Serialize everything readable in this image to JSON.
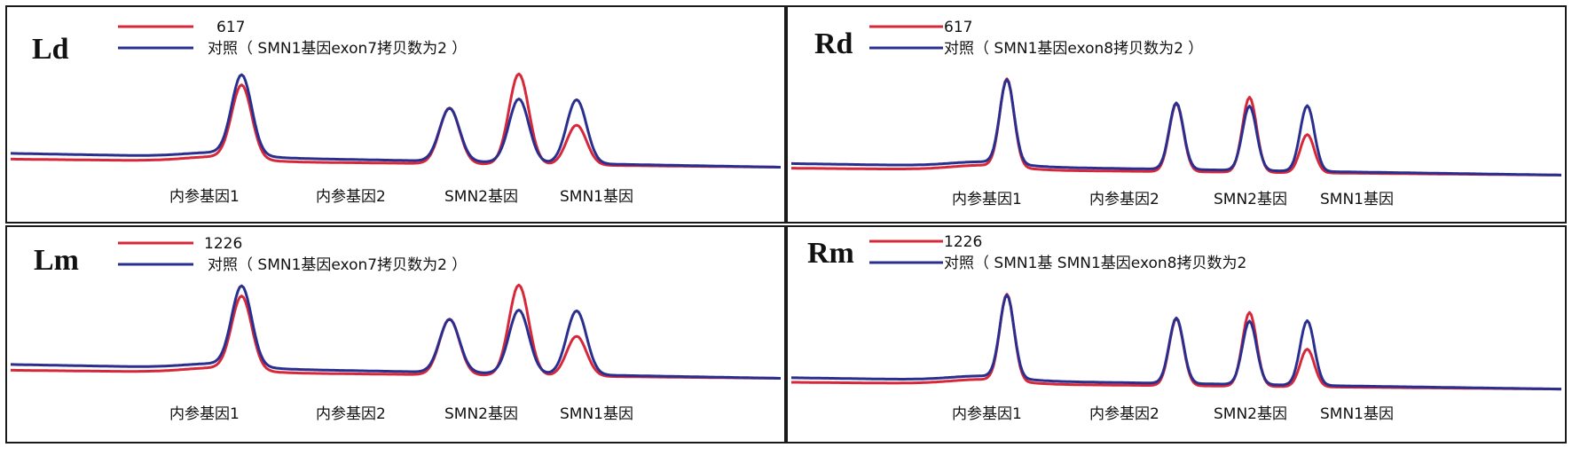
{
  "panels": [
    {
      "label": "Ld",
      "legend": [
        {
          "name": "617",
          "color": "#d6283a"
        },
        {
          "name": "对照（ SMN1基因exon7拷贝数为2 ）",
          "color": "#2a2f8f"
        }
      ],
      "peak_labels": [
        "内参基因1",
        "内参基因2",
        "SMN2基因",
        "SMN1基因"
      ]
    },
    {
      "label": "Rd",
      "legend": [
        {
          "name": "617",
          "color": "#d6283a"
        },
        {
          "name": "对照（ SMN1基因exon8拷贝数为2 ）",
          "color": "#2a2f8f"
        }
      ],
      "peak_labels": [
        "内参基因1",
        "内参基因2",
        "SMN2基因",
        "SMN1基因"
      ]
    },
    {
      "label": "Lm",
      "legend": [
        {
          "name": "1226",
          "color": "#d6283a"
        },
        {
          "name": "对照（ SMN1基因exon7拷贝数为2 ）",
          "color": "#2a2f8f"
        }
      ],
      "peak_labels": [
        "内参基因1",
        "内参基因2",
        "SMN2基因",
        "SMN1基因"
      ]
    },
    {
      "label": "Rm",
      "legend": [
        {
          "name": "1226",
          "color": "#d6283a"
        },
        {
          "name": "对照（ SMN1基 SMN1基因exon8拷贝数为2",
          "color": "#2a2f8f"
        }
      ],
      "peak_labels": [
        "内参基因1",
        "内参基因2",
        "SMN2基因",
        "SMN1基因"
      ]
    }
  ],
  "chart_data": [
    {
      "type": "line",
      "panel": "Ld",
      "x_range": [
        0,
        1
      ],
      "y_range": [
        0,
        1
      ],
      "peaks_x": [
        0.3,
        0.45,
        0.57,
        0.66,
        0.735
      ],
      "series": [
        {
          "name": "617",
          "color": "#d6283a",
          "baseline_left": 0.22,
          "baseline_right": 0.15,
          "peaks": [
            0.68,
            0.0,
            0.52,
            0.82,
            0.38
          ]
        },
        {
          "name": "对照（ SMN1基因exon7拷贝数为2 ）",
          "color": "#2a2f8f",
          "baseline_left": 0.27,
          "baseline_right": 0.15,
          "peaks": [
            0.74,
            0.0,
            0.5,
            0.59,
            0.59
          ]
        }
      ]
    },
    {
      "type": "line",
      "panel": "Rd",
      "x_range": [
        0,
        1
      ],
      "y_range": [
        0,
        1
      ],
      "peaks_x": [
        0.28,
        0.5,
        0.595,
        0.67
      ],
      "series": [
        {
          "name": "617",
          "color": "#d6283a",
          "baseline_left": 0.18,
          "baseline_right": 0.12,
          "peaks": [
            0.8,
            0.62,
            0.68,
            0.36
          ]
        },
        {
          "name": "对照（ SMN1基因exon8拷贝数为2 ）",
          "color": "#2a2f8f",
          "baseline_left": 0.22,
          "baseline_right": 0.12,
          "peaks": [
            0.77,
            0.61,
            0.59,
            0.6
          ]
        }
      ]
    },
    {
      "type": "line",
      "panel": "Lm",
      "x_range": [
        0,
        1
      ],
      "y_range": [
        0,
        1
      ],
      "peaks_x": [
        0.3,
        0.45,
        0.57,
        0.66,
        0.735
      ],
      "series": [
        {
          "name": "1226",
          "color": "#d6283a",
          "baseline_left": 0.22,
          "baseline_right": 0.15,
          "peaks": [
            0.68,
            0.0,
            0.52,
            0.82,
            0.38
          ]
        },
        {
          "name": "对照（ SMN1基因exon7拷贝数为2 ）",
          "color": "#2a2f8f",
          "baseline_left": 0.27,
          "baseline_right": 0.15,
          "peaks": [
            0.74,
            0.0,
            0.5,
            0.59,
            0.59
          ]
        }
      ]
    },
    {
      "type": "line",
      "panel": "Rm",
      "x_range": [
        0,
        1
      ],
      "y_range": [
        0,
        1
      ],
      "peaks_x": [
        0.28,
        0.5,
        0.595,
        0.67
      ],
      "series": [
        {
          "name": "1226",
          "color": "#d6283a",
          "baseline_left": 0.18,
          "baseline_right": 0.12,
          "peaks": [
            0.8,
            0.62,
            0.68,
            0.36
          ]
        },
        {
          "name": "对照（ SMN1基 SMN1基因exon8拷贝数为2",
          "color": "#2a2f8f",
          "baseline_left": 0.22,
          "baseline_right": 0.12,
          "peaks": [
            0.77,
            0.61,
            0.59,
            0.6
          ]
        }
      ]
    }
  ]
}
